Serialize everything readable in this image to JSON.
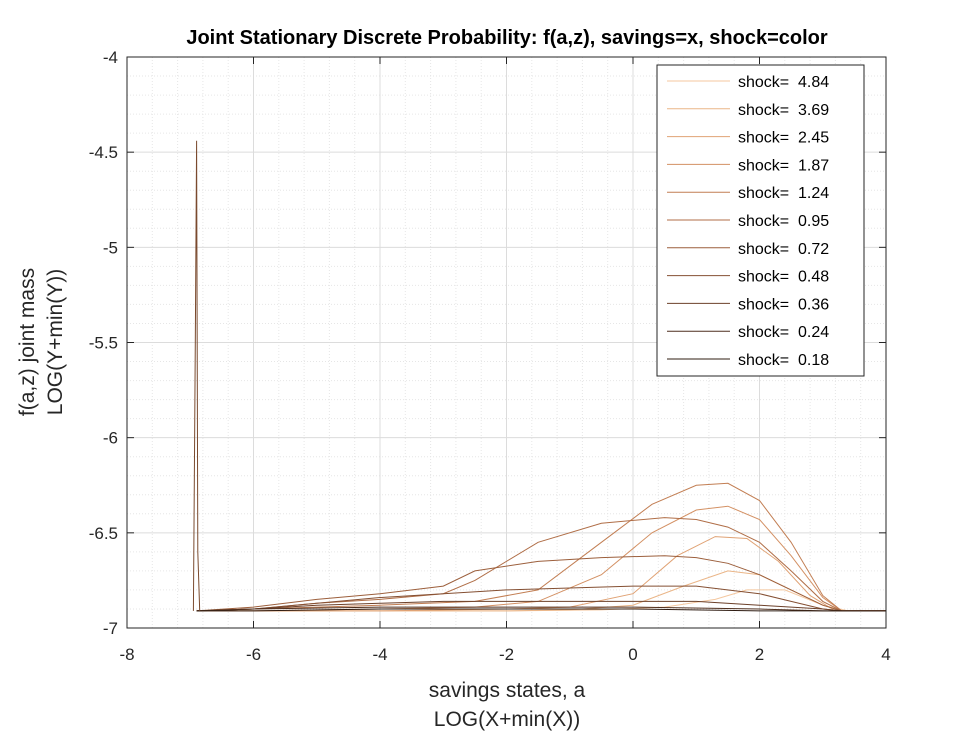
{
  "chart_data": {
    "type": "line",
    "title": "Joint Stationary Discrete Probability: f(a,z), savings=x, shock=color",
    "xlabel": [
      "savings states, a",
      "LOG(X+min(X))"
    ],
    "ylabel": [
      "f(a,z) joint mass",
      "LOG(Y+min(Y))"
    ],
    "xlim": [
      -8,
      4
    ],
    "ylim": [
      -7,
      -4
    ],
    "xticks": [
      "-8",
      "-6",
      "-4",
      "-2",
      "0",
      "2",
      "4"
    ],
    "yticks": [
      "-4",
      "-4.5",
      "-5",
      "-5.5",
      "-6",
      "-6.5",
      "-7"
    ],
    "grid": "on",
    "minor_grid": "on",
    "legend_position": "top-right",
    "series": [
      {
        "name": "shock=  4.84",
        "color": "#f4c79f",
        "x": [
          -6.9,
          -6,
          -4,
          -2,
          -0.5,
          0.5,
          1.3,
          1.8,
          2.4,
          3,
          3.4,
          4
        ],
        "y": [
          -6.91,
          -6.91,
          -6.91,
          -6.91,
          -6.905,
          -6.89,
          -6.85,
          -6.8,
          -6.8,
          -6.88,
          -6.91,
          -6.91
        ]
      },
      {
        "name": "shock=  3.69",
        "color": "#eab587",
        "x": [
          -6.9,
          -6,
          -4,
          -2,
          -1,
          0,
          0.8,
          1.5,
          2,
          2.5,
          3,
          3.3,
          4
        ],
        "y": [
          -6.91,
          -6.91,
          -6.91,
          -6.91,
          -6.905,
          -6.88,
          -6.78,
          -6.7,
          -6.72,
          -6.8,
          -6.88,
          -6.91,
          -6.91
        ]
      },
      {
        "name": "shock=  2.45",
        "color": "#e0a274",
        "x": [
          -6.9,
          -6,
          -4,
          -2,
          -1,
          0,
          0.7,
          1.3,
          1.8,
          2.3,
          2.8,
          3.2,
          4
        ],
        "y": [
          -6.91,
          -6.91,
          -6.91,
          -6.9,
          -6.89,
          -6.82,
          -6.62,
          -6.52,
          -6.53,
          -6.65,
          -6.83,
          -6.91,
          -6.91
        ]
      },
      {
        "name": "shock=  1.87",
        "color": "#d39063",
        "x": [
          -6.9,
          -6,
          -4,
          -2.5,
          -1.5,
          -0.5,
          0.3,
          1,
          1.5,
          2,
          2.5,
          3,
          3.3,
          4
        ],
        "y": [
          -6.91,
          -6.91,
          -6.9,
          -6.89,
          -6.86,
          -6.72,
          -6.5,
          -6.38,
          -6.36,
          -6.43,
          -6.62,
          -6.84,
          -6.91,
          -6.91
        ]
      },
      {
        "name": "shock=  1.24",
        "color": "#c27e53",
        "x": [
          -6.9,
          -6,
          -4,
          -2.5,
          -1.5,
          -0.5,
          0.3,
          1,
          1.5,
          2,
          2.5,
          3,
          3.3,
          4
        ],
        "y": [
          -6.91,
          -6.9,
          -6.88,
          -6.86,
          -6.8,
          -6.55,
          -6.35,
          -6.25,
          -6.24,
          -6.33,
          -6.55,
          -6.83,
          -6.91,
          -6.91
        ]
      },
      {
        "name": "shock=  0.95",
        "color": "#b06e47",
        "x": [
          -6.9,
          -6,
          -5,
          -4,
          -3,
          -2.5,
          -1.5,
          -0.5,
          0.5,
          1,
          1.5,
          2,
          2.5,
          3,
          3.3,
          4
        ],
        "y": [
          -6.91,
          -6.9,
          -6.87,
          -6.85,
          -6.82,
          -6.75,
          -6.55,
          -6.45,
          -6.42,
          -6.43,
          -6.47,
          -6.55,
          -6.7,
          -6.86,
          -6.91,
          -6.91
        ]
      },
      {
        "name": "shock=  0.72",
        "color": "#9c5f3c",
        "x": [
          -6.9,
          -6,
          -5,
          -4,
          -3,
          -2.5,
          -1.5,
          -0.5,
          0.5,
          1,
          1.5,
          2,
          2.5,
          3,
          3.3,
          4
        ],
        "y": [
          -6.91,
          -6.89,
          -6.85,
          -6.82,
          -6.78,
          -6.7,
          -6.65,
          -6.63,
          -6.62,
          -6.63,
          -6.66,
          -6.72,
          -6.8,
          -6.88,
          -6.91,
          -6.91
        ]
      },
      {
        "name": "shock=  0.48",
        "color": "#844f32",
        "x": [
          -6.9,
          -6,
          -5,
          -4,
          -3,
          -2,
          -1,
          0,
          1,
          2,
          2.5,
          3,
          3.3,
          4
        ],
        "y": [
          -6.91,
          -6.9,
          -6.87,
          -6.84,
          -6.82,
          -6.8,
          -6.79,
          -6.78,
          -6.78,
          -6.82,
          -6.86,
          -6.9,
          -6.91,
          -6.91
        ]
      },
      {
        "name": "shock=  0.36",
        "color": "#6c4029",
        "x": [
          -6.9,
          -6,
          -5,
          -4,
          -3,
          -2,
          -1,
          0,
          1,
          2,
          3,
          3.3,
          4
        ],
        "y": [
          -6.91,
          -6.9,
          -6.88,
          -6.87,
          -6.86,
          -6.86,
          -6.86,
          -6.86,
          -6.86,
          -6.88,
          -6.9,
          -6.91,
          -6.91
        ]
      },
      {
        "name": "shock=  0.24",
        "color": "#4f2f1e",
        "x": [
          -6.9,
          -6,
          -4,
          -2,
          0,
          2,
          3,
          4
        ],
        "y": [
          -6.91,
          -6.9,
          -6.89,
          -6.89,
          -6.89,
          -6.9,
          -6.91,
          -6.91
        ]
      },
      {
        "name": "shock=  0.18",
        "color": "#2f1c12",
        "x": [
          -6.9,
          -6,
          -4,
          -2,
          0,
          2,
          3,
          4
        ],
        "y": [
          -6.91,
          -6.91,
          -6.9,
          -6.9,
          -6.9,
          -6.91,
          -6.91,
          -6.91
        ]
      }
    ],
    "spike": {
      "x": [
        -6.95,
        -6.92,
        -6.9,
        -6.88,
        -6.85
      ],
      "y": [
        -6.91,
        -5.5,
        -4.44,
        -6.6,
        -6.91
      ]
    }
  }
}
